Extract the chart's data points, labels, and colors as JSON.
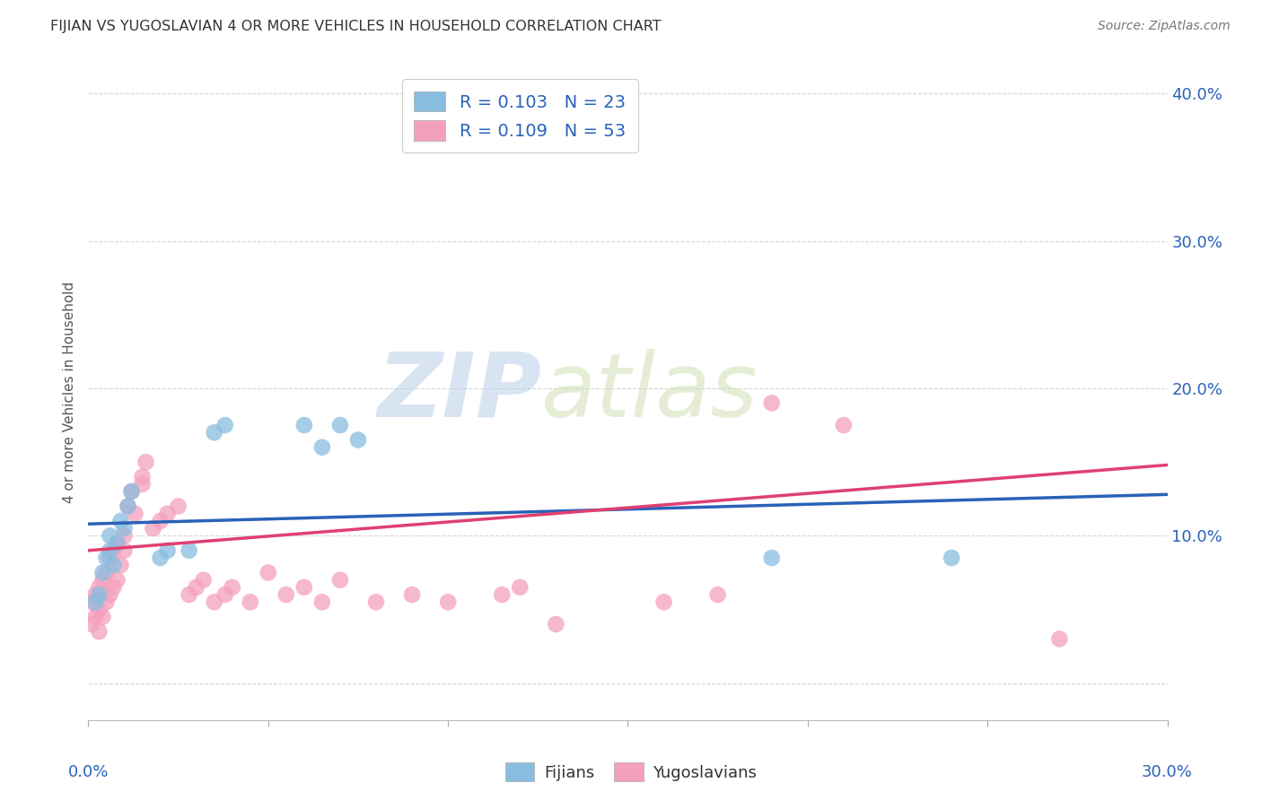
{
  "title": "FIJIAN VS YUGOSLAVIAN 4 OR MORE VEHICLES IN HOUSEHOLD CORRELATION CHART",
  "source": "Source: ZipAtlas.com",
  "ylabel": "4 or more Vehicles in Household",
  "xlim": [
    0.0,
    0.3
  ],
  "ylim": [
    -0.025,
    0.42
  ],
  "yticks": [
    0.0,
    0.1,
    0.2,
    0.3,
    0.4
  ],
  "xticks": [
    0.0,
    0.05,
    0.1,
    0.15,
    0.2,
    0.25,
    0.3
  ],
  "fijian_R": 0.103,
  "fijian_N": 23,
  "yugoslav_R": 0.109,
  "yugoslav_N": 53,
  "fijian_color": "#89bde0",
  "yugoslav_color": "#f4a0bc",
  "fijian_line_color": "#2962b8",
  "yugoslav_line_color": "#e04070",
  "background_color": "#ffffff",
  "grid_color": "#cccccc",
  "title_color": "#333333",
  "axis_label_color": "#2962b8",
  "watermark_zip": "ZIP",
  "watermark_atlas": "atlas",
  "fijian_x": [
    0.002,
    0.003,
    0.004,
    0.005,
    0.006,
    0.006,
    0.007,
    0.008,
    0.009,
    0.01,
    0.011,
    0.012,
    0.02,
    0.022,
    0.028,
    0.035,
    0.038,
    0.06,
    0.065,
    0.07,
    0.075,
    0.19,
    0.24
  ],
  "fijian_y": [
    0.055,
    0.06,
    0.075,
    0.085,
    0.09,
    0.1,
    0.08,
    0.095,
    0.11,
    0.105,
    0.12,
    0.13,
    0.085,
    0.09,
    0.09,
    0.17,
    0.175,
    0.175,
    0.16,
    0.175,
    0.165,
    0.085,
    0.085
  ],
  "yugoslav_x": [
    0.001,
    0.001,
    0.002,
    0.002,
    0.003,
    0.003,
    0.003,
    0.004,
    0.004,
    0.005,
    0.005,
    0.006,
    0.006,
    0.007,
    0.007,
    0.008,
    0.008,
    0.009,
    0.01,
    0.01,
    0.011,
    0.012,
    0.013,
    0.015,
    0.015,
    0.016,
    0.018,
    0.02,
    0.022,
    0.025,
    0.028,
    0.03,
    0.032,
    0.035,
    0.038,
    0.04,
    0.045,
    0.05,
    0.055,
    0.06,
    0.065,
    0.07,
    0.08,
    0.09,
    0.1,
    0.115,
    0.12,
    0.13,
    0.16,
    0.175,
    0.19,
    0.21,
    0.27
  ],
  "yugoslav_y": [
    0.04,
    0.055,
    0.045,
    0.06,
    0.035,
    0.05,
    0.065,
    0.045,
    0.07,
    0.055,
    0.075,
    0.06,
    0.085,
    0.065,
    0.09,
    0.07,
    0.095,
    0.08,
    0.09,
    0.1,
    0.12,
    0.13,
    0.115,
    0.135,
    0.14,
    0.15,
    0.105,
    0.11,
    0.115,
    0.12,
    0.06,
    0.065,
    0.07,
    0.055,
    0.06,
    0.065,
    0.055,
    0.075,
    0.06,
    0.065,
    0.055,
    0.07,
    0.055,
    0.06,
    0.055,
    0.06,
    0.065,
    0.04,
    0.055,
    0.06,
    0.19,
    0.175,
    0.03
  ],
  "fijian_line_x0": 0.0,
  "fijian_line_y0": 0.108,
  "fijian_line_x1": 0.3,
  "fijian_line_y1": 0.128,
  "yugoslav_line_x0": 0.0,
  "yugoslav_line_y0": 0.09,
  "yugoslav_line_x1": 0.3,
  "yugoslav_line_y1": 0.148
}
